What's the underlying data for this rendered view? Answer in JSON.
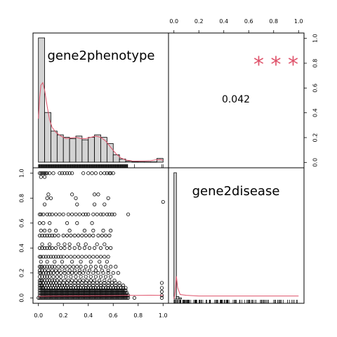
{
  "chart_data": [
    {
      "type": "histogram",
      "panel": "diagonal-1",
      "variable_label": "gene2phenotype",
      "xlim": [
        0,
        1
      ],
      "bins": [
        {
          "x0": 0.0,
          "x1": 0.05,
          "count": 1.0
        },
        {
          "x0": 0.05,
          "x1": 0.1,
          "count": 0.4
        },
        {
          "x0": 0.1,
          "x1": 0.15,
          "count": 0.25
        },
        {
          "x0": 0.15,
          "x1": 0.2,
          "count": 0.22
        },
        {
          "x0": 0.2,
          "x1": 0.25,
          "count": 0.2
        },
        {
          "x0": 0.25,
          "x1": 0.3,
          "count": 0.19
        },
        {
          "x0": 0.3,
          "x1": 0.35,
          "count": 0.21
        },
        {
          "x0": 0.35,
          "x1": 0.4,
          "count": 0.18
        },
        {
          "x0": 0.4,
          "x1": 0.45,
          "count": 0.2
        },
        {
          "x0": 0.45,
          "x1": 0.5,
          "count": 0.22
        },
        {
          "x0": 0.5,
          "x1": 0.55,
          "count": 0.2
        },
        {
          "x0": 0.55,
          "x1": 0.6,
          "count": 0.15
        },
        {
          "x0": 0.6,
          "x1": 0.65,
          "count": 0.06
        },
        {
          "x0": 0.65,
          "x1": 0.7,
          "count": 0.025
        },
        {
          "x0": 0.7,
          "x1": 0.75,
          "count": 0.008
        },
        {
          "x0": 0.75,
          "x1": 0.8,
          "count": 0.004
        },
        {
          "x0": 0.8,
          "x1": 0.85,
          "count": 0.003
        },
        {
          "x0": 0.85,
          "x1": 0.9,
          "count": 0.003
        },
        {
          "x0": 0.9,
          "x1": 0.95,
          "count": 0.003
        },
        {
          "x0": 0.95,
          "x1": 1.0,
          "count": 0.03
        }
      ],
      "density": [
        [
          0.0,
          0.35
        ],
        [
          0.01,
          0.52
        ],
        [
          0.02,
          0.62
        ],
        [
          0.035,
          0.64
        ],
        [
          0.05,
          0.58
        ],
        [
          0.07,
          0.45
        ],
        [
          0.09,
          0.34
        ],
        [
          0.11,
          0.28
        ],
        [
          0.14,
          0.24
        ],
        [
          0.18,
          0.21
        ],
        [
          0.22,
          0.19
        ],
        [
          0.26,
          0.195
        ],
        [
          0.3,
          0.2
        ],
        [
          0.34,
          0.19
        ],
        [
          0.38,
          0.19
        ],
        [
          0.42,
          0.2
        ],
        [
          0.46,
          0.21
        ],
        [
          0.5,
          0.2
        ],
        [
          0.54,
          0.17
        ],
        [
          0.58,
          0.12
        ],
        [
          0.62,
          0.07
        ],
        [
          0.66,
          0.035
        ],
        [
          0.7,
          0.018
        ],
        [
          0.75,
          0.01
        ],
        [
          0.8,
          0.009
        ],
        [
          0.85,
          0.01
        ],
        [
          0.9,
          0.012
        ],
        [
          0.95,
          0.02
        ],
        [
          0.98,
          0.022
        ],
        [
          1.0,
          0.015
        ]
      ],
      "series_color": "#DF536B"
    },
    {
      "type": "text",
      "panel": "upper-right",
      "correlation": "0.042",
      "significance": "* * *",
      "top_axis_ticks": [
        "0.0",
        "0.2",
        "0.4",
        "0.6",
        "0.8",
        "1.0"
      ],
      "right_axis_ticks": [
        "0.0",
        "0.2",
        "0.4",
        "0.6",
        "0.8",
        "1.0"
      ]
    },
    {
      "type": "scatter",
      "panel": "lower-left",
      "xlim": [
        0,
        1
      ],
      "ylim": [
        0,
        1
      ],
      "x_ticks": [
        "0.0",
        "0.2",
        "0.4",
        "0.6",
        "0.8",
        "1.0"
      ],
      "y_ticks": [
        "0.0",
        "0.2",
        "0.4",
        "0.6",
        "0.8",
        "1.0"
      ],
      "level_rows": [
        {
          "y": 1.0,
          "x": [
            0.01,
            0.02,
            0.03,
            0.04,
            0.05,
            0.06,
            0.07,
            0.09,
            0.12,
            0.17,
            0.19,
            0.21,
            0.23,
            0.25,
            0.27,
            0.36,
            0.4,
            0.43,
            0.46,
            0.5,
            0.53,
            0.55,
            0.57,
            0.58,
            0.6
          ]
        },
        {
          "y": 0.97,
          "x": [
            0.02,
            0.05
          ]
        },
        {
          "y": 0.83,
          "x": [
            0.08,
            0.27,
            0.45,
            0.48
          ]
        },
        {
          "y": 0.8,
          "x": [
            0.07,
            0.1,
            0.3,
            0.56
          ]
        },
        {
          "y": 0.75,
          "x": [
            0.05,
            0.31,
            0.45,
            0.53
          ]
        },
        {
          "y": 0.67,
          "x": [
            0.01,
            0.02,
            0.04,
            0.07,
            0.09,
            0.11,
            0.14,
            0.17,
            0.2,
            0.24,
            0.27,
            0.3,
            0.33,
            0.36,
            0.38,
            0.4,
            0.44,
            0.47,
            0.5,
            0.52,
            0.55,
            0.57,
            0.59,
            0.61,
            0.72
          ]
        },
        {
          "y": 0.6,
          "x": [
            0.01,
            0.04,
            0.09,
            0.23,
            0.31,
            0.43
          ]
        },
        {
          "y": 0.54,
          "x": [
            0.02,
            0.05,
            0.09,
            0.14,
            0.25,
            0.37,
            0.44,
            0.52,
            0.58
          ]
        },
        {
          "y": 0.5,
          "x": [
            0.01,
            0.03,
            0.05,
            0.07,
            0.09,
            0.11,
            0.13,
            0.16,
            0.2,
            0.23,
            0.26,
            0.29,
            0.32,
            0.35,
            0.38,
            0.41,
            0.44,
            0.48,
            0.51,
            0.54,
            0.57
          ]
        },
        {
          "y": 0.43,
          "x": [
            0.03,
            0.09,
            0.16,
            0.21,
            0.25,
            0.32,
            0.38,
            0.47,
            0.53
          ]
        },
        {
          "y": 0.4,
          "x": [
            0.01,
            0.03,
            0.05,
            0.07,
            0.09,
            0.11,
            0.14,
            0.18,
            0.21,
            0.25,
            0.29,
            0.33,
            0.37,
            0.41,
            0.45,
            0.5,
            0.55,
            0.58
          ]
        },
        {
          "y": 0.33,
          "x": [
            0.01,
            0.02,
            0.04,
            0.06,
            0.08,
            0.1,
            0.12,
            0.14,
            0.16,
            0.18,
            0.2,
            0.23,
            0.26,
            0.29,
            0.32,
            0.35,
            0.38,
            0.41,
            0.44,
            0.47,
            0.5,
            0.53,
            0.56
          ]
        },
        {
          "y": 0.29,
          "x": [
            0.02,
            0.07,
            0.13,
            0.19,
            0.27,
            0.34,
            0.42,
            0.49,
            0.55
          ]
        },
        {
          "y": 0.25,
          "x": [
            0.01,
            0.02,
            0.03,
            0.05,
            0.07,
            0.09,
            0.11,
            0.13,
            0.16,
            0.19,
            0.22,
            0.25,
            0.28,
            0.31,
            0.34,
            0.38,
            0.42,
            0.46,
            0.5,
            0.54,
            0.58,
            0.62
          ]
        },
        {
          "y": 0.22,
          "x": [
            0.01,
            0.03,
            0.05,
            0.08,
            0.11,
            0.14,
            0.17,
            0.21,
            0.25,
            0.29,
            0.33,
            0.37,
            0.41,
            0.46,
            0.51,
            0.56
          ]
        },
        {
          "y": 0.2,
          "x": [
            0.01,
            0.02,
            0.04,
            0.06,
            0.08,
            0.1,
            0.12,
            0.15,
            0.18,
            0.21,
            0.24,
            0.27,
            0.3,
            0.33,
            0.36,
            0.4,
            0.44,
            0.48,
            0.52,
            0.56,
            0.6,
            0.64
          ]
        },
        {
          "y": 0.17,
          "x": [
            0.01,
            0.03,
            0.05,
            0.07,
            0.09,
            0.12,
            0.15,
            0.18,
            0.22,
            0.26,
            0.3,
            0.34,
            0.38,
            0.42,
            0.46,
            0.5,
            0.54,
            0.58
          ]
        },
        {
          "y": 0.14,
          "x": [
            0.01,
            0.02,
            0.03,
            0.05,
            0.07,
            0.09,
            0.11,
            0.13,
            0.15,
            0.18,
            0.21,
            0.24,
            0.27,
            0.3,
            0.33,
            0.36,
            0.39,
            0.42,
            0.45,
            0.49,
            0.53,
            0.57,
            0.61
          ]
        },
        {
          "y": 0.12,
          "x": [
            0.01,
            0.02,
            0.04,
            0.06,
            0.08,
            0.1,
            0.12,
            0.14,
            0.17,
            0.2,
            0.23,
            0.26,
            0.29,
            0.32,
            0.35,
            0.38,
            0.41,
            0.44,
            0.47,
            0.5,
            0.53,
            0.56,
            0.59,
            0.62,
            0.65
          ]
        },
        {
          "y": 0.1,
          "x": [
            0.01,
            0.02,
            0.03,
            0.05,
            0.07,
            0.09,
            0.11,
            0.13,
            0.15,
            0.17,
            0.19,
            0.21,
            0.23,
            0.26,
            0.29,
            0.32,
            0.35,
            0.38,
            0.41,
            0.44,
            0.47,
            0.5,
            0.53,
            0.56,
            0.59,
            0.62,
            0.65,
            0.68
          ]
        },
        {
          "y": 0.08,
          "x": [
            0.01,
            0.02,
            0.03,
            0.04,
            0.06,
            0.08,
            0.1,
            0.12,
            0.14,
            0.16,
            0.18,
            0.2,
            0.22,
            0.24,
            0.26,
            0.28,
            0.3,
            0.32,
            0.34,
            0.36,
            0.38,
            0.4,
            0.42,
            0.44,
            0.46,
            0.48,
            0.5,
            0.52,
            0.54,
            0.56,
            0.58,
            0.6,
            0.62,
            0.64,
            0.66,
            0.68,
            0.7
          ]
        },
        {
          "y": 0.06,
          "x": [
            0.01,
            0.02,
            0.03,
            0.04,
            0.05,
            0.06,
            0.07,
            0.08,
            0.09,
            0.1,
            0.11,
            0.12,
            0.13,
            0.14,
            0.15,
            0.16,
            0.17,
            0.18,
            0.19,
            0.2,
            0.21,
            0.22,
            0.23,
            0.24,
            0.25,
            0.26,
            0.27,
            0.28,
            0.29,
            0.3,
            0.31,
            0.32,
            0.33,
            0.34,
            0.35,
            0.36,
            0.37,
            0.38,
            0.39,
            0.4,
            0.41,
            0.42,
            0.43,
            0.44,
            0.45,
            0.46,
            0.47,
            0.48,
            0.49,
            0.5,
            0.51,
            0.52,
            0.53,
            0.54,
            0.55,
            0.56,
            0.57,
            0.58,
            0.59,
            0.6,
            0.61,
            0.62,
            0.63,
            0.64,
            0.65,
            0.66,
            0.67,
            0.68,
            0.69,
            0.7
          ]
        },
        {
          "y": 0.04,
          "x": [
            0.01,
            0.02,
            0.03,
            0.04,
            0.05,
            0.06,
            0.07,
            0.08,
            0.09,
            0.1,
            0.11,
            0.12,
            0.13,
            0.14,
            0.15,
            0.16,
            0.17,
            0.18,
            0.19,
            0.2,
            0.21,
            0.22,
            0.23,
            0.24,
            0.25,
            0.26,
            0.27,
            0.28,
            0.29,
            0.3,
            0.31,
            0.32,
            0.33,
            0.34,
            0.35,
            0.36,
            0.37,
            0.38,
            0.39,
            0.4,
            0.41,
            0.42,
            0.43,
            0.44,
            0.45,
            0.46,
            0.47,
            0.48,
            0.49,
            0.5,
            0.51,
            0.52,
            0.53,
            0.54,
            0.55,
            0.56,
            0.57,
            0.58,
            0.59,
            0.6,
            0.61,
            0.62,
            0.63,
            0.64,
            0.65,
            0.66,
            0.67,
            0.68,
            0.69,
            0.7,
            0.71
          ]
        },
        {
          "y": 0.02,
          "x": [
            0.01,
            0.02,
            0.03,
            0.04,
            0.05,
            0.06,
            0.07,
            0.08,
            0.09,
            0.1,
            0.11,
            0.12,
            0.13,
            0.14,
            0.15,
            0.16,
            0.17,
            0.18,
            0.19,
            0.2,
            0.21,
            0.22,
            0.23,
            0.24,
            0.25,
            0.26,
            0.27,
            0.28,
            0.29,
            0.3,
            0.31,
            0.32,
            0.33,
            0.34,
            0.35,
            0.36,
            0.37,
            0.38,
            0.39,
            0.4,
            0.41,
            0.42,
            0.43,
            0.44,
            0.45,
            0.46,
            0.47,
            0.48,
            0.49,
            0.5,
            0.51,
            0.52,
            0.53,
            0.54,
            0.55,
            0.56,
            0.57,
            0.58,
            0.59,
            0.6,
            0.61,
            0.62,
            0.63,
            0.64,
            0.65,
            0.66,
            0.67,
            0.68,
            0.69,
            0.7,
            0.71,
            0.72
          ]
        },
        {
          "y": 0.0,
          "x": [
            0.0,
            0.01,
            0.02,
            0.03,
            0.04,
            0.05,
            0.06,
            0.07,
            0.08,
            0.09,
            0.1,
            0.11,
            0.12,
            0.13,
            0.14,
            0.15,
            0.16,
            0.17,
            0.18,
            0.19,
            0.2,
            0.21,
            0.22,
            0.23,
            0.24,
            0.25,
            0.26,
            0.27,
            0.28,
            0.29,
            0.3,
            0.31,
            0.32,
            0.33,
            0.34,
            0.35,
            0.36,
            0.37,
            0.38,
            0.39,
            0.4,
            0.41,
            0.42,
            0.43,
            0.44,
            0.45,
            0.46,
            0.47,
            0.48,
            0.49,
            0.5,
            0.51,
            0.52,
            0.53,
            0.54,
            0.55,
            0.56,
            0.57,
            0.58,
            0.59,
            0.6,
            0.61,
            0.62,
            0.63,
            0.64,
            0.65,
            0.66,
            0.67,
            0.68,
            0.69,
            0.7,
            0.71,
            0.72
          ]
        }
      ],
      "outliers": [
        [
          0.77,
          0.0
        ],
        [
          0.99,
          0.0
        ],
        [
          0.99,
          0.02
        ],
        [
          0.99,
          0.05
        ],
        [
          0.99,
          0.08
        ],
        [
          0.99,
          0.12
        ],
        [
          1.0,
          0.77
        ]
      ],
      "smoother": [
        [
          0.0,
          0.012
        ],
        [
          0.1,
          0.014
        ],
        [
          0.2,
          0.015
        ],
        [
          0.3,
          0.016
        ],
        [
          0.4,
          0.016
        ],
        [
          0.5,
          0.017
        ],
        [
          0.6,
          0.018
        ],
        [
          0.7,
          0.02
        ],
        [
          0.8,
          0.02
        ],
        [
          0.9,
          0.021
        ],
        [
          1.0,
          0.02
        ]
      ],
      "series_color": "#DF536B"
    },
    {
      "type": "histogram",
      "panel": "diagonal-2",
      "variable_label": "gene2disease",
      "xlim": [
        0,
        1
      ],
      "bins": [
        {
          "x0": 0.0,
          "x1": 0.02,
          "count": 1.0
        },
        {
          "x0": 0.02,
          "x1": 0.04,
          "count": 0.02
        },
        {
          "x0": 0.04,
          "x1": 0.06,
          "count": 0.01
        }
      ],
      "density": [
        [
          0.0,
          0.0
        ],
        [
          0.01,
          0.02
        ],
        [
          0.02,
          0.06
        ],
        [
          0.03,
          0.03
        ],
        [
          0.05,
          0.012
        ],
        [
          0.1,
          0.01
        ],
        [
          0.2,
          0.008
        ],
        [
          0.4,
          0.008
        ],
        [
          0.6,
          0.008
        ],
        [
          0.8,
          0.008
        ],
        [
          1.0,
          0.008
        ]
      ],
      "series_color": "#DF536B"
    }
  ]
}
